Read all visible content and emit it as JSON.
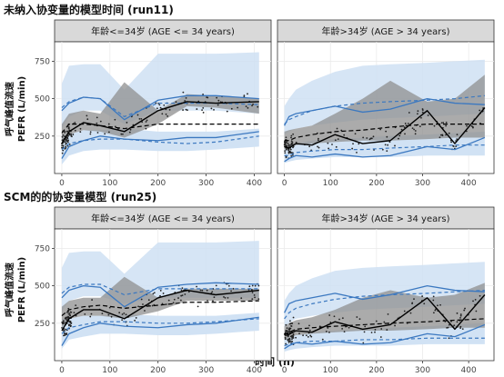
{
  "section_titles": [
    "未纳入协变量的模型时间 (run11)",
    "SCM的的协变量模型 (run25)"
  ],
  "y_label": {
    "line1": "呼气峰值流速",
    "line2": "PEFR (L/min)"
  },
  "x_label": "时间 (h)",
  "colors": {
    "observed_median": "#000000",
    "observed_pct": "#3b78c0",
    "sim_median_band": "#8f8f8f",
    "sim_pct_band": "#cfe0f3",
    "points": "#222222",
    "strip": "#d9d9d9",
    "grid": "#ebebeb"
  },
  "chart_data": [
    {
      "type": "vpc",
      "row_title": "未纳入协变量的模型时间 (run11)",
      "panel": "年龄<=34岁 (AGE <= 34 years)",
      "xlim": [
        -15,
        435
      ],
      "ylim": [
        0,
        880
      ],
      "x_ticks": [
        0,
        100,
        200,
        300,
        400
      ],
      "y_ticks": [
        250,
        500,
        750
      ],
      "x_bins": [
        0,
        15,
        45,
        80,
        130,
        200,
        260,
        320,
        410
      ],
      "obs_median": [
        200,
        280,
        340,
        320,
        280,
        420,
        480,
        470,
        480
      ],
      "obs_p05": [
        100,
        180,
        220,
        250,
        230,
        220,
        240,
        240,
        280
      ],
      "obs_p95": [
        420,
        470,
        510,
        500,
        360,
        490,
        520,
        520,
        500
      ],
      "sim_median": [
        270,
        330,
        330,
        320,
        300,
        330,
        330,
        330,
        330
      ],
      "sim_p05": [
        160,
        200,
        220,
        230,
        230,
        210,
        200,
        210,
        250
      ],
      "sim_p95": [
        440,
        480,
        510,
        500,
        380,
        470,
        470,
        470,
        460
      ],
      "band_median": {
        "lo": [
          180,
          260,
          290,
          280,
          240,
          330,
          450,
          440,
          400
        ],
        "hi": [
          330,
          400,
          420,
          400,
          610,
          420,
          530,
          520,
          500
        ]
      },
      "band_p05": {
        "lo": [
          60,
          120,
          150,
          160,
          160,
          150,
          150,
          160,
          180
        ],
        "hi": [
          260,
          260,
          290,
          290,
          300,
          280,
          280,
          280,
          300
        ]
      },
      "band_p95": {
        "lo": [
          300,
          380,
          420,
          420,
          330,
          420,
          420,
          420,
          400
        ],
        "hi": [
          600,
          720,
          730,
          730,
          560,
          800,
          800,
          800,
          810
        ]
      }
    },
    {
      "type": "vpc",
      "row_title": "未纳入协变量的模型时间 (run11)",
      "panel": "年龄>34岁 (AGE > 34 years)",
      "xlim": [
        -15,
        455
      ],
      "ylim": [
        0,
        880
      ],
      "x_ticks": [
        0,
        100,
        200,
        300,
        400
      ],
      "y_ticks": [
        250,
        500,
        750
      ],
      "x_bins": [
        0,
        10,
        25,
        60,
        110,
        170,
        230,
        310,
        370,
        435
      ],
      "obs_median": [
        180,
        170,
        200,
        190,
        260,
        200,
        220,
        420,
        200,
        440
      ],
      "obs_p05": [
        80,
        100,
        120,
        110,
        130,
        110,
        120,
        180,
        160,
        240
      ],
      "obs_p95": [
        320,
        380,
        400,
        420,
        450,
        410,
        430,
        500,
        470,
        460
      ],
      "sim_median": [
        220,
        220,
        240,
        260,
        280,
        290,
        310,
        330,
        330,
        330
      ],
      "sim_p05": [
        120,
        120,
        140,
        150,
        160,
        160,
        170,
        180,
        190,
        190
      ],
      "sim_p95": [
        330,
        360,
        380,
        420,
        450,
        470,
        480,
        490,
        500,
        520
      ],
      "band_median": {
        "lo": [
          160,
          170,
          190,
          200,
          210,
          220,
          220,
          230,
          240,
          240
        ],
        "hi": [
          280,
          290,
          300,
          320,
          400,
          500,
          620,
          480,
          500,
          660
        ]
      },
      "band_p05": {
        "lo": [
          70,
          80,
          90,
          100,
          110,
          110,
          110,
          120,
          120,
          120
        ],
        "hi": [
          180,
          190,
          200,
          220,
          230,
          240,
          250,
          260,
          270,
          280
        ]
      },
      "band_p95": {
        "lo": [
          260,
          280,
          300,
          320,
          340,
          360,
          370,
          380,
          390,
          400
        ],
        "hi": [
          450,
          500,
          560,
          620,
          680,
          720,
          730,
          740,
          750,
          760
        ]
      }
    },
    {
      "type": "vpc",
      "row_title": "SCM的的协变量模型 (run25)",
      "panel": "年龄<=34岁 (AGE <= 34 years)",
      "xlim": [
        -15,
        435
      ],
      "ylim": [
        0,
        880
      ],
      "x_ticks": [
        0,
        100,
        200,
        300,
        400
      ],
      "y_ticks": [
        250,
        500,
        750
      ],
      "x_bins": [
        0,
        15,
        45,
        80,
        130,
        200,
        260,
        320,
        410
      ],
      "obs_median": [
        200,
        280,
        340,
        340,
        280,
        420,
        470,
        440,
        470
      ],
      "obs_p05": [
        100,
        180,
        220,
        250,
        230,
        220,
        240,
        250,
        290
      ],
      "obs_p95": [
        420,
        470,
        500,
        490,
        360,
        490,
        510,
        520,
        510
      ],
      "sim_median": [
        300,
        340,
        360,
        370,
        350,
        370,
        390,
        390,
        400
      ],
      "sim_p05": [
        180,
        220,
        240,
        260,
        260,
        250,
        250,
        260,
        280
      ],
      "sim_p95": [
        450,
        490,
        510,
        510,
        440,
        480,
        480,
        480,
        480
      ],
      "band_median": {
        "lo": [
          220,
          280,
          300,
          300,
          280,
          330,
          400,
          400,
          400
        ],
        "hi": [
          360,
          400,
          420,
          420,
          560,
          420,
          480,
          480,
          480
        ]
      },
      "band_p05": {
        "lo": [
          80,
          140,
          160,
          180,
          180,
          170,
          170,
          180,
          200
        ],
        "hi": [
          280,
          280,
          300,
          300,
          310,
          300,
          300,
          300,
          320
        ]
      },
      "band_p95": {
        "lo": [
          330,
          400,
          430,
          430,
          380,
          420,
          420,
          420,
          420
        ],
        "hi": [
          620,
          720,
          730,
          730,
          580,
          790,
          790,
          790,
          800
        ]
      }
    },
    {
      "type": "vpc",
      "row_title": "SCM的的协变量模型 (run25)",
      "panel": "年龄>34岁 (AGE > 34 years)",
      "xlim": [
        -15,
        455
      ],
      "ylim": [
        0,
        880
      ],
      "x_ticks": [
        0,
        100,
        200,
        300,
        400
      ],
      "y_ticks": [
        250,
        500,
        750
      ],
      "x_bins": [
        0,
        10,
        25,
        60,
        110,
        170,
        230,
        310,
        370,
        435
      ],
      "obs_median": [
        180,
        175,
        200,
        190,
        260,
        210,
        240,
        420,
        210,
        440
      ],
      "obs_p05": [
        80,
        100,
        120,
        110,
        130,
        110,
        120,
        180,
        160,
        240
      ],
      "obs_p95": [
        320,
        380,
        400,
        420,
        450,
        410,
        440,
        500,
        470,
        460
      ],
      "sim_median": [
        170,
        190,
        210,
        220,
        230,
        240,
        250,
        260,
        270,
        280
      ],
      "sim_p05": [
        100,
        110,
        120,
        130,
        130,
        140,
        140,
        150,
        150,
        150
      ],
      "sim_p95": [
        280,
        320,
        350,
        380,
        410,
        430,
        440,
        450,
        460,
        470
      ],
      "band_median": {
        "lo": [
          140,
          150,
          170,
          180,
          190,
          200,
          200,
          210,
          220,
          220
        ],
        "hi": [
          230,
          250,
          270,
          290,
          340,
          420,
          470,
          420,
          440,
          520
        ]
      },
      "band_p05": {
        "lo": [
          60,
          70,
          80,
          90,
          100,
          100,
          100,
          110,
          110,
          110
        ],
        "hi": [
          150,
          160,
          170,
          190,
          200,
          210,
          220,
          230,
          240,
          250
        ]
      },
      "band_p95": {
        "lo": [
          220,
          250,
          280,
          300,
          320,
          340,
          350,
          360,
          370,
          380
        ],
        "hi": [
          400,
          450,
          500,
          550,
          600,
          620,
          630,
          640,
          650,
          660
        ]
      }
    }
  ]
}
